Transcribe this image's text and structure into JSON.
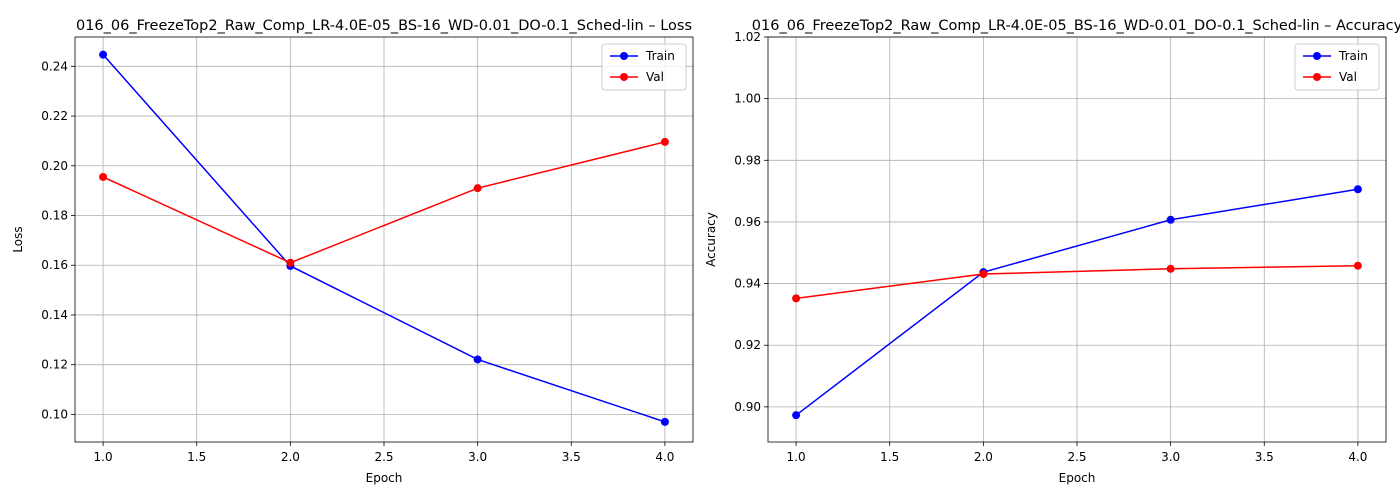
{
  "chart_data": [
    {
      "type": "line",
      "title": "016_06_FreezeTop2_Raw_Comp_LR-4.0E-05_BS-16_WD-0.01_DO-0.1_Sched-lin – Loss",
      "xlabel": "Epoch",
      "ylabel": "Loss",
      "x": [
        1,
        2,
        3,
        4
      ],
      "xlim": [
        0.85,
        4.15
      ],
      "ylim": [
        0.0889,
        0.2518
      ],
      "xticks": [
        "1.0",
        "1.5",
        "2.0",
        "2.5",
        "3.0",
        "3.5",
        "4.0"
      ],
      "yticks": [
        "0.10",
        "0.12",
        "0.14",
        "0.16",
        "0.18",
        "0.20",
        "0.22",
        "0.24"
      ],
      "grid": true,
      "legend": "upper right",
      "series": [
        {
          "name": "Train",
          "color": "#0000ff",
          "values": [
            0.2447,
            0.1597,
            0.1221,
            0.097
          ]
        },
        {
          "name": "Val",
          "color": "#ff0000",
          "values": [
            0.1955,
            0.161,
            0.191,
            0.2096
          ]
        }
      ]
    },
    {
      "type": "line",
      "title": "016_06_FreezeTop2_Raw_Comp_LR-4.0E-05_BS-16_WD-0.01_DO-0.1_Sched-lin – Accuracy",
      "xlabel": "Epoch",
      "ylabel": "Accuracy",
      "x": [
        1,
        2,
        3,
        4
      ],
      "xlim": [
        0.85,
        4.15
      ],
      "ylim": [
        0.8886,
        1.02
      ],
      "xticks": [
        "1.0",
        "1.5",
        "2.0",
        "2.5",
        "3.0",
        "3.5",
        "4.0"
      ],
      "yticks": [
        "0.90",
        "0.92",
        "0.94",
        "0.96",
        "0.98",
        "1.00",
        "1.02"
      ],
      "grid": true,
      "legend": "upper right",
      "series": [
        {
          "name": "Train",
          "color": "#0000ff",
          "values": [
            0.8973,
            0.9437,
            0.9607,
            0.9706
          ]
        },
        {
          "name": "Val",
          "color": "#ff0000",
          "values": [
            0.9352,
            0.9431,
            0.9448,
            0.9458
          ]
        }
      ]
    }
  ]
}
